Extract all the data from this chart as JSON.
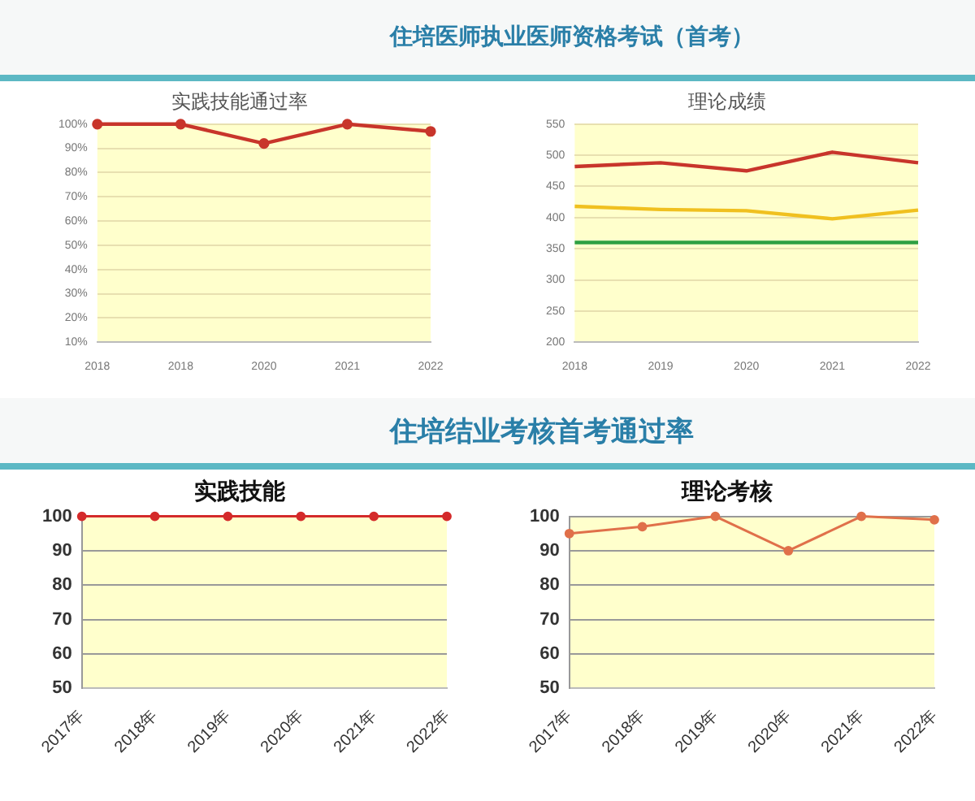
{
  "chart_data": [
    {
      "type": "line",
      "title": "实践技能通过率",
      "annotations": [
        "住培医师执业医师资格考试（首考）"
      ],
      "categories": [
        "2018",
        "2018",
        "2020",
        "2021",
        "2022"
      ],
      "series": [
        {
          "color": "#c8352b",
          "values": [
            100,
            100,
            92,
            100,
            97
          ]
        }
      ],
      "ylim": [
        10,
        100
      ],
      "yticks": [
        {
          "value": 10,
          "label": "10%"
        },
        {
          "value": 20,
          "label": "20%"
        },
        {
          "value": 30,
          "label": "30%"
        },
        {
          "value": 40,
          "label": "40%"
        },
        {
          "value": 50,
          "label": "50%"
        },
        {
          "value": 60,
          "label": "60%"
        },
        {
          "value": 70,
          "label": "70%"
        },
        {
          "value": 80,
          "label": "80%"
        },
        {
          "value": 90,
          "label": "90%"
        },
        {
          "value": 100,
          "label": "100%"
        }
      ],
      "grid": "y",
      "legend": false,
      "marker": "circle"
    },
    {
      "type": "line",
      "title": "理论成绩",
      "categories": [
        "2018",
        "2019",
        "2020",
        "2021",
        "2022"
      ],
      "series": [
        {
          "color": "#c8352b",
          "values": [
            482,
            488,
            475,
            505,
            488
          ]
        },
        {
          "color": "#f0c020",
          "values": [
            418,
            413,
            411,
            398,
            412
          ]
        },
        {
          "color": "#2ea043",
          "values": [
            360,
            360,
            360,
            360,
            360
          ]
        }
      ],
      "ylim": [
        200,
        550
      ],
      "yticks": [
        200,
        250,
        300,
        350,
        400,
        450,
        500,
        550
      ],
      "grid": "y",
      "legend": false,
      "marker": "none"
    },
    {
      "type": "line",
      "title": "实践技能",
      "annotations": [
        "住培结业考核首考通过率"
      ],
      "categories": [
        "2017年",
        "2018年",
        "2019年",
        "2020年",
        "2021年",
        "2022年"
      ],
      "series": [
        {
          "color": "#d42a2a",
          "values": [
            100,
            100,
            100,
            100,
            100,
            100
          ]
        }
      ],
      "ylim": [
        50,
        100
      ],
      "yticks": [
        50,
        60,
        70,
        80,
        90,
        100
      ],
      "grid": "y",
      "legend": false,
      "marker": "circle"
    },
    {
      "type": "line",
      "title": "理论考核",
      "categories": [
        "2017年",
        "2018年",
        "2019年",
        "2020年",
        "2021年",
        "2022年"
      ],
      "series": [
        {
          "color": "#e0704a",
          "values": [
            95,
            97,
            100,
            90,
            100,
            99
          ]
        }
      ],
      "ylim": [
        50,
        100
      ],
      "yticks": [
        50,
        60,
        70,
        80,
        90,
        100
      ],
      "grid": "y",
      "legend": false,
      "marker": "circle"
    }
  ]
}
